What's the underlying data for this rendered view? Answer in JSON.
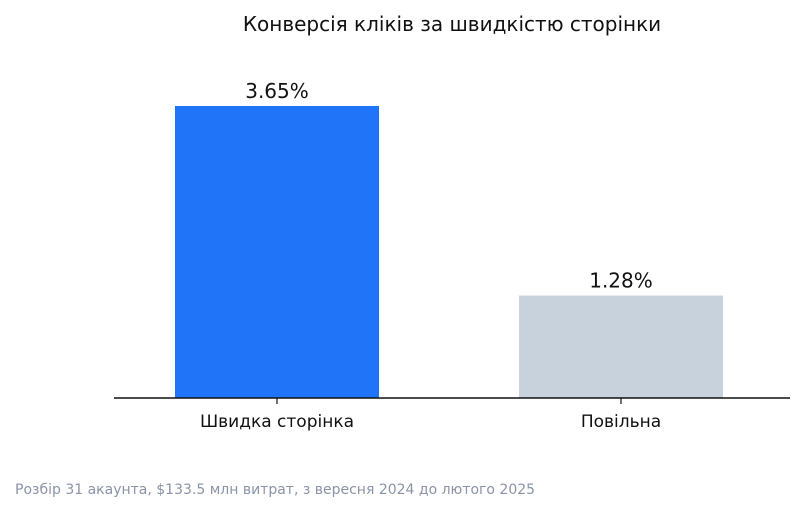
{
  "chart_data": {
    "type": "bar",
    "title": "Конверсія кліків за швидкістю сторінки",
    "categories": [
      "Швидка сторінка",
      "Повільна"
    ],
    "values": [
      3.65,
      1.28
    ],
    "value_labels": [
      "3.65%",
      "1.28%"
    ],
    "colors": [
      "#1f74f7",
      "#c8d2dd"
    ],
    "ylim": [
      0,
      4.0
    ],
    "grid": false,
    "legend": "none",
    "xlabel": "",
    "ylabel": "",
    "footnote": "Розбір 31 акаунта, $133.5 млн витрат, з вересня 2024 до лютого 2025"
  }
}
